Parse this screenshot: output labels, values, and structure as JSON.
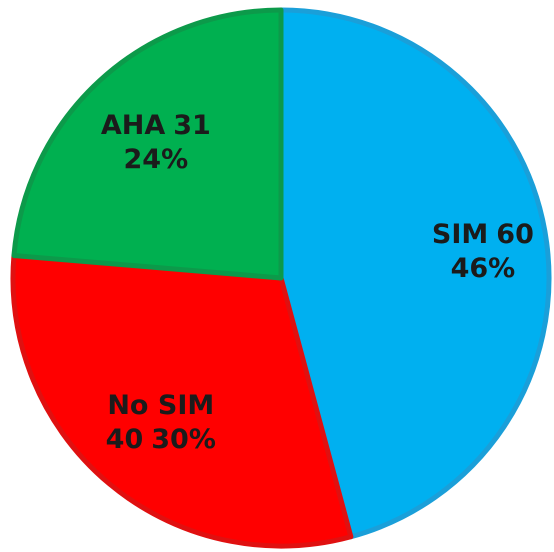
{
  "chart_data": {
    "type": "pie",
    "categories": [
      "SIM",
      "No SIM",
      "AHA"
    ],
    "values": [
      60,
      40,
      31
    ],
    "percent_labels": [
      "46%",
      "30%",
      "24%"
    ],
    "colors": [
      "#00b0f0",
      "#ff0000",
      "#00b050"
    ]
  }
}
